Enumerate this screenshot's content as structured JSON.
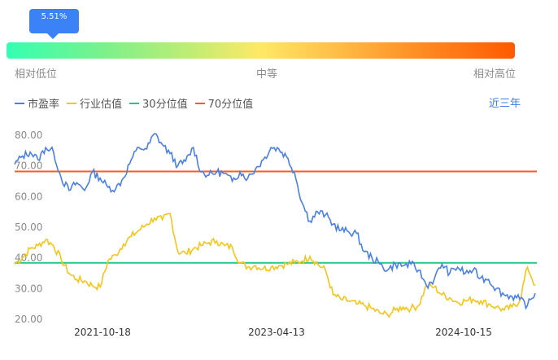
{
  "gauge": {
    "value_label": "5.51%",
    "value": 5.51,
    "low_label": "相对低位",
    "mid_label": "中等",
    "high_label": "相对高位"
  },
  "period": {
    "label": "近三年"
  },
  "colors": {
    "pe": "#4a7fe6",
    "industry": "#f5c518",
    "p30": "#1ec98a",
    "p70": "#ff5a1f",
    "accent": "#3b82f6"
  },
  "chart_data": {
    "type": "line",
    "title": "",
    "xlabel": "",
    "ylabel": "",
    "ylim": [
      20,
      80
    ],
    "yticks": [
      "20.00",
      "30.00",
      "40.00",
      "50.00",
      "60.00",
      "70.00",
      "80.00"
    ],
    "xticks": [
      "2021-10-18",
      "2023-04-13",
      "2024-10-15"
    ],
    "legend_position": "top-left",
    "grid": false,
    "series": [
      {
        "name": "市盈率",
        "values": [
          70.5,
          73.2,
          74.5,
          72.0,
          76.0,
          74.5,
          66.0,
          62.0,
          64.5,
          62.0,
          68.0,
          66.0,
          63.0,
          62.5,
          66.0,
          72.0,
          76.0,
          75.5,
          80.5,
          77.0,
          74.0,
          70.0,
          71.5,
          76.0,
          68.0,
          67.0,
          68.0,
          67.5,
          65.0,
          68.0,
          66.0,
          69.0,
          72.0,
          76.0,
          75.5,
          73.0,
          68.0,
          58.0,
          52.0,
          55.0,
          54.0,
          51.0,
          49.0,
          48.5,
          48.0,
          42.0,
          40.0,
          38.0,
          36.0,
          38.0,
          37.5,
          38.0,
          36.0,
          31.0,
          33.0,
          38.0,
          35.0,
          37.0,
          35.0,
          36.0,
          33.5,
          33.0,
          30.0,
          28.0,
          27.5,
          26.5,
          24.5,
          28.5
        ]
      },
      {
        "name": "行业估值",
        "values": [
          38.0,
          40.0,
          43.0,
          44.0,
          46.0,
          44.0,
          39.5,
          35.0,
          33.0,
          32.5,
          31.0,
          30.5,
          39.0,
          41.0,
          44.5,
          47.0,
          49.0,
          51.0,
          53.0,
          52.5,
          54.5,
          42.0,
          41.5,
          43.0,
          44.0,
          45.0,
          45.5,
          44.0,
          43.5,
          38.5,
          37.0,
          37.5,
          36.5,
          37.0,
          37.5,
          38.0,
          38.5,
          39.0,
          40.5,
          38.0,
          36.0,
          28.0,
          26.5,
          26.0,
          25.0,
          24.5,
          23.5,
          22.0,
          21.5,
          23.0,
          24.0,
          23.5,
          24.5,
          31.0,
          30.5,
          28.0,
          27.0,
          25.5,
          26.0,
          26.5,
          26.0,
          25.0,
          24.0,
          23.0,
          24.0,
          26.0,
          37.0,
          31.0
        ]
      },
      {
        "name": "30分位值",
        "values": [
          38.4
        ]
      },
      {
        "name": "70分位值",
        "values": [
          68.2
        ]
      }
    ]
  }
}
